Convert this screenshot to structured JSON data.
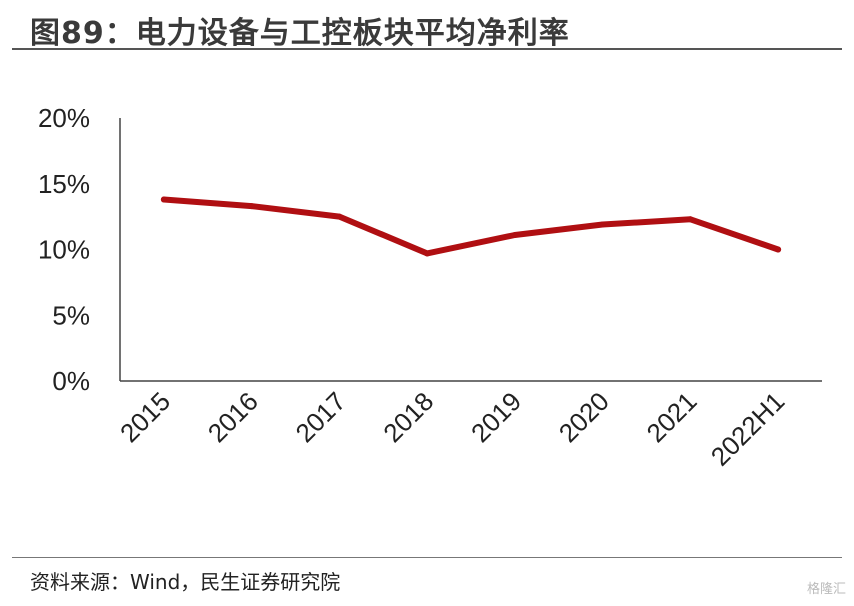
{
  "header": {
    "title": "图89：电力设备与工控板块平均净利率"
  },
  "footer": {
    "source": "资料来源：Wind，民生证券研究院",
    "watermark": "格隆汇"
  },
  "colors": {
    "series": "#B00F12",
    "axis": "#444444"
  },
  "chart_data": {
    "type": "line",
    "categories": [
      "2015",
      "2016",
      "2017",
      "2018",
      "2019",
      "2020",
      "2021",
      "2022H1"
    ],
    "series": [
      {
        "values": [
          13.8,
          13.3,
          12.5,
          9.7,
          11.1,
          11.9,
          12.3,
          10.0
        ]
      }
    ],
    "yticks": [
      "0%",
      "5%",
      "10%",
      "15%",
      "20%"
    ],
    "ylim": [
      0,
      20
    ],
    "grid": false,
    "legend": "none",
    "title": "",
    "xlabel": "",
    "ylabel": ""
  }
}
